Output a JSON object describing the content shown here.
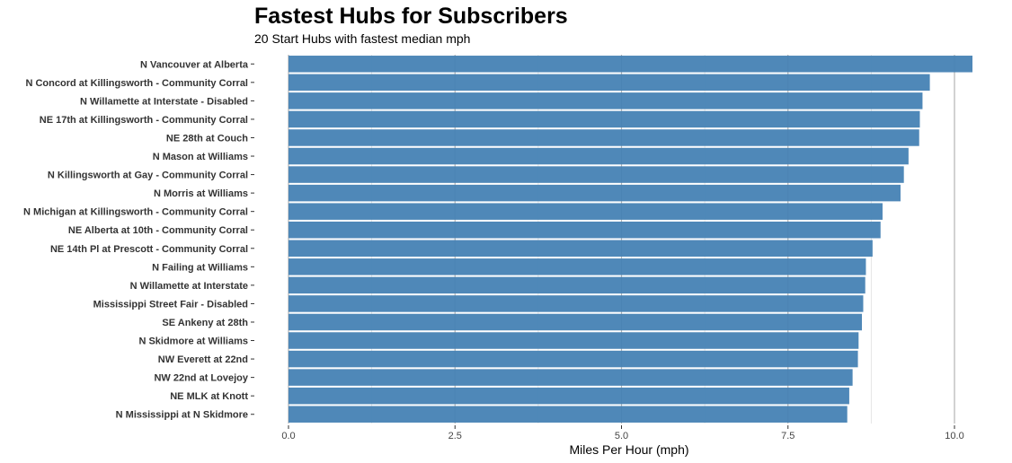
{
  "chart_data": {
    "type": "bar",
    "orientation": "horizontal",
    "title": "Fastest Hubs for Subscribers",
    "subtitle": "20 Start Hubs with fastest median mph",
    "xlabel": "Miles Per Hour (mph)",
    "ylabel": "",
    "xlim": [
      0,
      10.4
    ],
    "x_ticks": [
      "0.0",
      "2.5",
      "5.0",
      "7.5",
      "10.0"
    ],
    "x_tick_values": [
      0,
      2.5,
      5,
      7.5,
      10
    ],
    "grid": true,
    "bar_color": "#4682b4",
    "categories": [
      "N Vancouver at Alberta",
      "N Concord at Killingsworth - Community Corral",
      "N Willamette at Interstate - Disabled",
      "NE 17th at Killingsworth - Community Corral",
      "NE 28th at Couch",
      "N Mason at Williams",
      "N Killingsworth at Gay - Community Corral",
      "N Morris at Williams",
      "N Michigan at Killingsworth - Community Corral",
      "NE Alberta at 10th - Community Corral",
      "NE 14th Pl at Prescott - Community Corral",
      "N Failing at Williams",
      "N Willamette at Interstate",
      "Mississippi Street Fair - Disabled",
      "SE Ankeny at 28th",
      "N Skidmore at Williams",
      "NW Everett at 22nd",
      "NW 22nd at Lovejoy",
      "NE MLK at Knott",
      "N Mississippi at N Skidmore"
    ],
    "values": [
      10.27,
      9.63,
      9.52,
      9.48,
      9.47,
      9.31,
      9.24,
      9.19,
      8.92,
      8.89,
      8.77,
      8.67,
      8.66,
      8.63,
      8.61,
      8.56,
      8.55,
      8.47,
      8.42,
      8.39
    ]
  }
}
